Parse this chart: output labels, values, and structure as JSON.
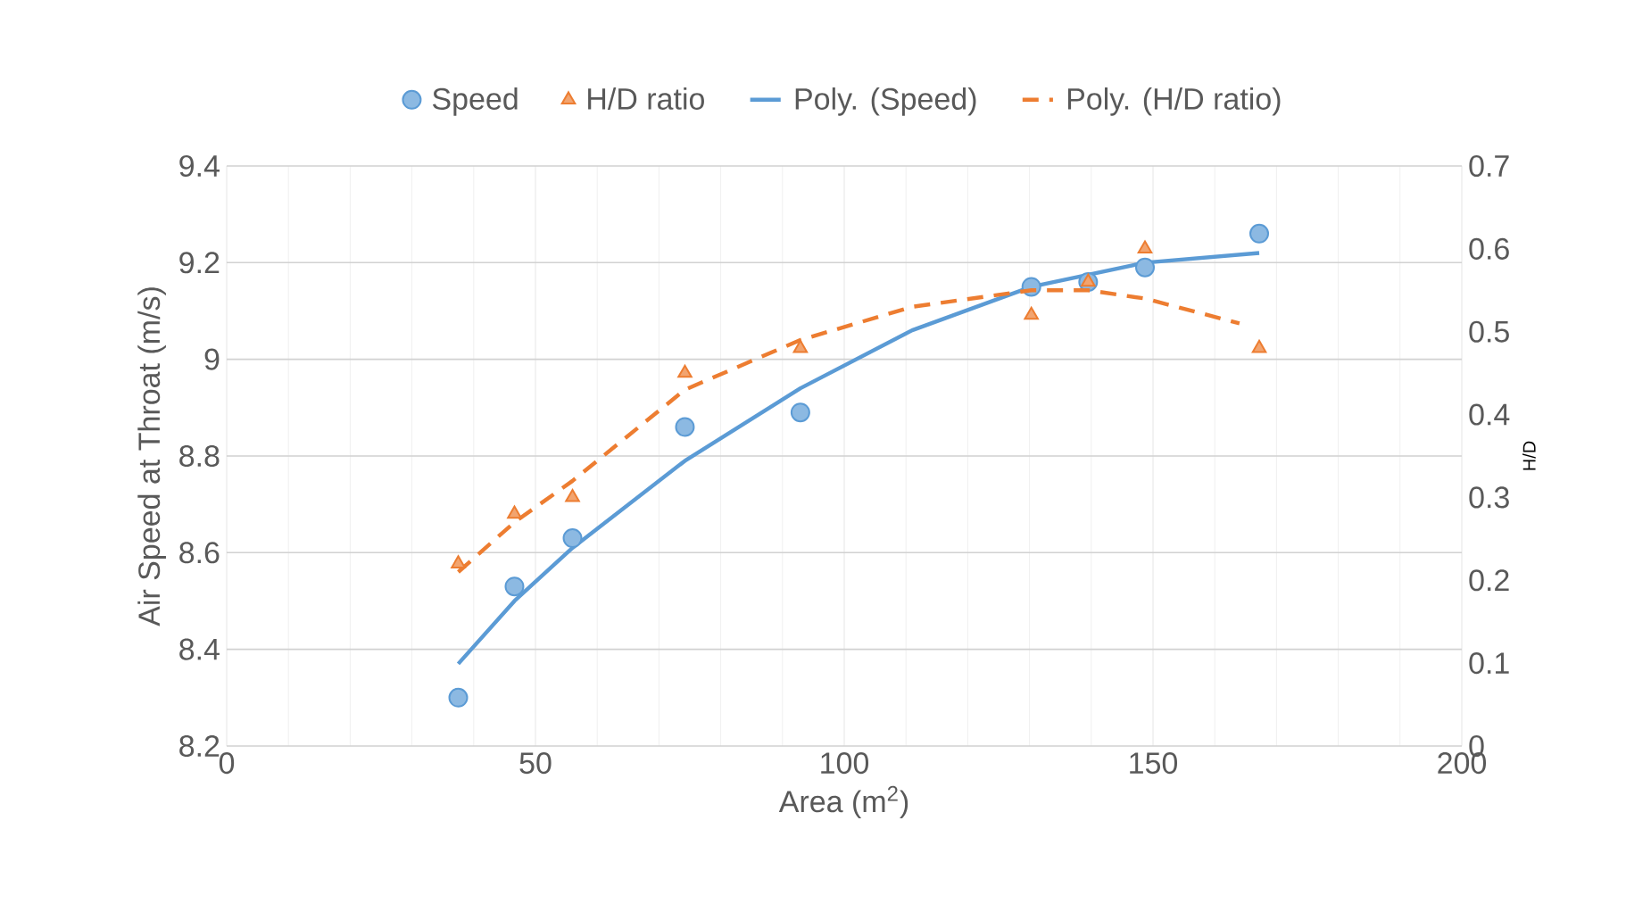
{
  "chart_data": {
    "type": "scatter",
    "xlabel": "Area (m$^{2}$)",
    "ylabel": "Air Speed at Throat (m/s)",
    "y2label": "H/D",
    "xlim": [
      0,
      200
    ],
    "xticks": [
      0,
      50,
      100,
      150,
      200
    ],
    "ylim": [
      8.2,
      9.4
    ],
    "yticks": [
      8.2,
      8.4,
      8.6,
      8.8,
      9,
      9.2,
      9.4
    ],
    "y2lim": [
      0,
      0.7
    ],
    "y2ticks": [
      0,
      0.1,
      0.2,
      0.3,
      0.4,
      0.5,
      0.6,
      0.7
    ],
    "grid": true,
    "legend": "top",
    "series": [
      {
        "name": "Speed",
        "marker": "circle",
        "color": "#5b9bd5",
        "x": [
          37.5,
          46.6,
          56.0,
          74.2,
          92.9,
          130.3,
          139.5,
          148.7,
          167.2
        ],
        "values": [
          8.3,
          8.53,
          8.63,
          8.86,
          8.89,
          9.15,
          9.16,
          9.19,
          9.26
        ]
      },
      {
        "name": "H/D ratio",
        "marker": "triangle",
        "axis": "y2",
        "color": "#ed7d31",
        "x": [
          37.5,
          46.6,
          56.0,
          74.2,
          92.9,
          130.3,
          139.5,
          148.7,
          167.2
        ],
        "values": [
          0.22,
          0.28,
          0.3,
          0.45,
          0.48,
          0.52,
          0.56,
          0.6,
          0.48
        ]
      },
      {
        "name": "Poly. (Speed)",
        "type": "line",
        "line_style": "solid",
        "color": "#5b9bd5",
        "x": [
          37.5,
          46.6,
          56.0,
          74.2,
          92.9,
          111.0,
          130.3,
          148.7,
          167.2
        ],
        "values": [
          8.37,
          8.5,
          8.61,
          8.79,
          8.94,
          9.06,
          9.15,
          9.2,
          9.22
        ]
      },
      {
        "name": "Poly. (H/D ratio)",
        "type": "line",
        "line_style": "dashed",
        "axis": "y2",
        "color": "#ed7d31",
        "x": [
          37.5,
          46.6,
          56.0,
          74.2,
          92.9,
          111.0,
          130.3,
          139.5,
          148.7,
          164.0
        ],
        "values": [
          0.21,
          0.27,
          0.32,
          0.43,
          0.49,
          0.53,
          0.55,
          0.55,
          0.54,
          0.51
        ]
      }
    ]
  }
}
